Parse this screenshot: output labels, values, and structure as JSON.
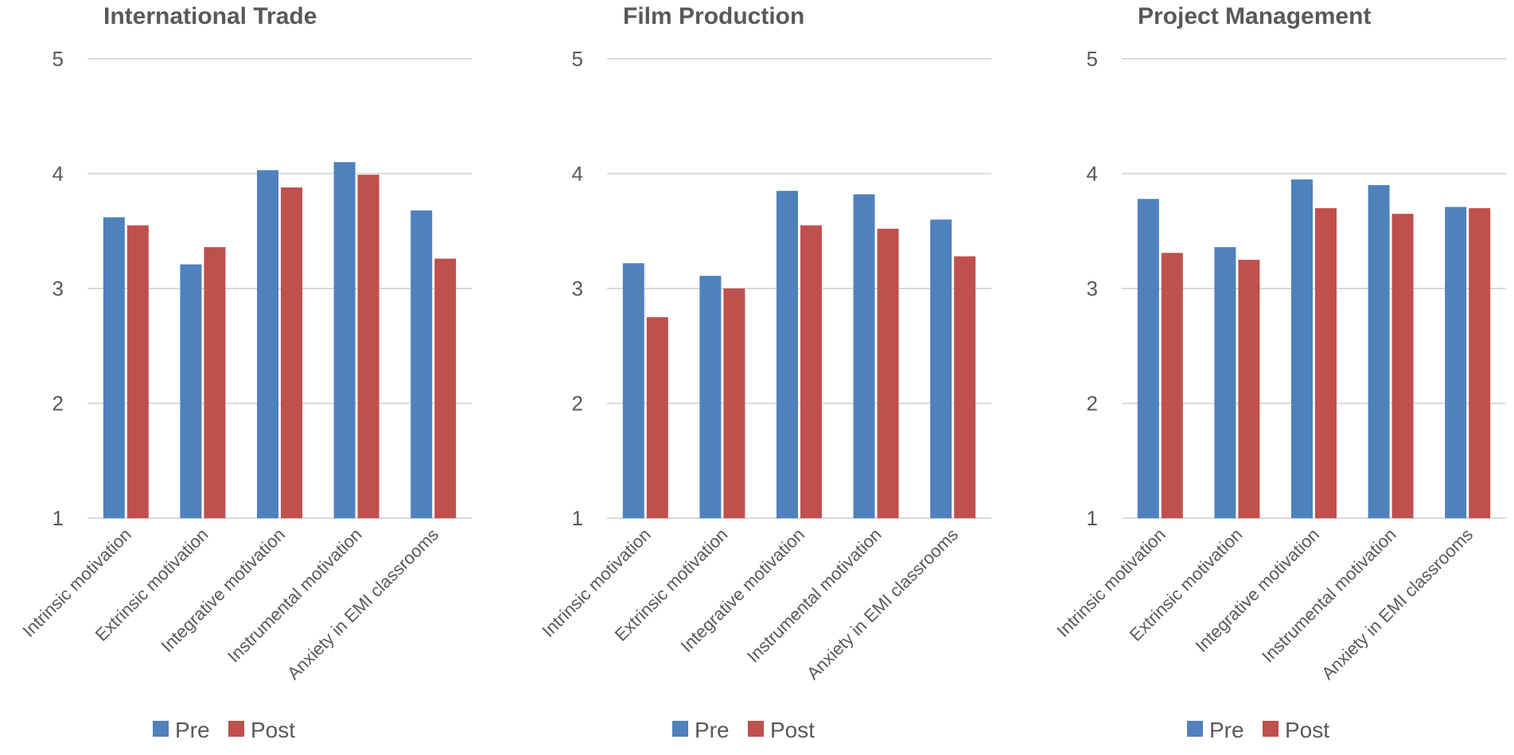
{
  "chart_data": [
    {
      "type": "bar",
      "title": "International Trade",
      "categories": [
        "Intrinsic motivation",
        "Extrinsic motivation",
        "Integrative motivation",
        "Instrumental motivation",
        "Anxiety in EMI classrooms"
      ],
      "series": [
        {
          "name": "Pre",
          "color": "#4f81bd",
          "values": [
            3.62,
            3.21,
            4.03,
            4.1,
            3.68
          ]
        },
        {
          "name": "Post",
          "color": "#c0504d",
          "values": [
            3.55,
            3.36,
            3.88,
            3.99,
            3.26
          ]
        }
      ],
      "ylim": [
        1,
        5
      ],
      "yticks": [
        "1",
        "2",
        "3",
        "4",
        "5"
      ],
      "grid": true,
      "legend": "bottom"
    },
    {
      "type": "bar",
      "title": "Film Production",
      "categories": [
        "Intrinsic motivation",
        "Extrinsic motivation",
        "Integrative motivation",
        "Instrumental motivation",
        "Anxiety in EMI classrooms"
      ],
      "series": [
        {
          "name": "Pre",
          "color": "#4f81bd",
          "values": [
            3.22,
            3.11,
            3.85,
            3.82,
            3.6
          ]
        },
        {
          "name": "Post",
          "color": "#c0504d",
          "values": [
            2.75,
            3.0,
            3.55,
            3.52,
            3.28
          ]
        }
      ],
      "ylim": [
        1,
        5
      ],
      "yticks": [
        "1",
        "2",
        "3",
        "4",
        "5"
      ],
      "grid": true,
      "legend": "bottom"
    },
    {
      "type": "bar",
      "title": "Project Management",
      "categories": [
        "Intrinsic motivation",
        "Extrinsic motivation",
        "Integrative motivation",
        "Instrumental motivation",
        "Anxiety in EMI classrooms"
      ],
      "series": [
        {
          "name": "Pre",
          "color": "#4f81bd",
          "values": [
            3.78,
            3.36,
            3.95,
            3.9,
            3.71
          ]
        },
        {
          "name": "Post",
          "color": "#c0504d",
          "values": [
            3.31,
            3.25,
            3.7,
            3.65,
            3.7
          ]
        }
      ],
      "ylim": [
        1,
        5
      ],
      "yticks": [
        "1",
        "2",
        "3",
        "4",
        "5"
      ],
      "grid": true,
      "legend": "bottom"
    }
  ]
}
